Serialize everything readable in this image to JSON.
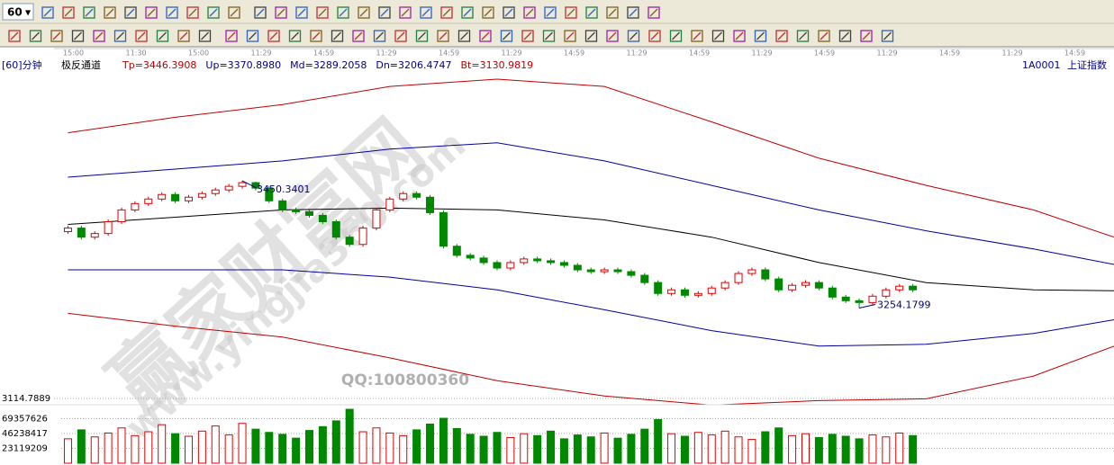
{
  "toolbar": {
    "period": "60"
  },
  "chart_data": {
    "type": "candlestick",
    "period_label": "[60]分钟",
    "indicator": "极反通道",
    "indicator_values": [
      "Tp=3446.3908",
      "Up=3370.8980",
      "Md=3289.2058",
      "Dn=3206.4747",
      "Bt=3130.9819"
    ],
    "code": "1A0001",
    "name": "上证指数",
    "time_labels": [
      "15:00",
      "11:30",
      "15:00",
      "11:29",
      "14:59",
      "11:29",
      "14:59",
      "11:29",
      "14:59",
      "11:29",
      "14:59",
      "11:29",
      "14:59",
      "11:29",
      "14:59",
      "11:29",
      "14:59"
    ],
    "open": [
      3372.0,
      3377.5,
      3363.5,
      3369.1,
      3387.3,
      3405.5,
      3415.3,
      3422.3,
      3429.3,
      3419.5,
      3425.1,
      3430.7,
      3436.3,
      3441.9,
      3447.5,
      3439.1,
      3419.5,
      3405.5,
      3402.7,
      3397.1,
      3387.3,
      3363.5,
      3352.3,
      3377.5,
      3405.5,
      3422.3,
      3430.7,
      3425.1,
      3401.3,
      3349.5,
      3335.5,
      3331.3,
      3324.3,
      3315.9,
      3324.3,
      3329.9,
      3327.1,
      3324.3,
      3320.1,
      3313.1,
      3310.3,
      3313.1,
      3310.3,
      3304.7,
      3293.5,
      3276.7,
      3282.3,
      3273.9,
      3276.7,
      3285.1,
      3293.5,
      3307.5,
      3313.1,
      3299.1,
      3282.3,
      3289.3,
      3293.5,
      3285.1,
      3271.1,
      3265.5,
      3262.7,
      3272.5,
      3282.3,
      3287.9
    ],
    "high": [
      3381.0,
      3381.0,
      3372.6,
      3390.8,
      3409.0,
      3418.8,
      3425.8,
      3432.8,
      3432.8,
      3428.6,
      3434.2,
      3439.8,
      3445.4,
      3450.3401,
      3449.0,
      3442.6,
      3423.0,
      3409.0,
      3406.2,
      3400.6,
      3390.8,
      3367.0,
      3381.0,
      3409.0,
      3425.8,
      3434.2,
      3434.2,
      3428.6,
      3404.8,
      3353.0,
      3339.0,
      3334.8,
      3327.8,
      3327.8,
      3333.4,
      3333.4,
      3330.6,
      3327.8,
      3323.6,
      3316.6,
      3316.6,
      3316.6,
      3313.8,
      3308.2,
      3297.0,
      3285.8,
      3285.8,
      3280.2,
      3288.6,
      3297.0,
      3311.0,
      3316.6,
      3316.6,
      3302.6,
      3292.8,
      3297.0,
      3297.0,
      3288.6,
      3274.6,
      3269.0,
      3276.0,
      3285.8,
      3291.4,
      3291.4
    ],
    "low": [
      3368.5,
      3360.0,
      3360.0,
      3365.6,
      3383.8,
      3402.0,
      3411.8,
      3418.8,
      3416.0,
      3416.0,
      3421.6,
      3427.2,
      3432.8,
      3438.4,
      3435.6,
      3416.0,
      3402.0,
      3399.2,
      3393.6,
      3383.8,
      3360.0,
      3348.8,
      3348.8,
      3374.0,
      3402.0,
      3418.8,
      3421.6,
      3397.8,
      3346.0,
      3332.0,
      3327.8,
      3320.8,
      3312.4,
      3312.4,
      3320.8,
      3323.6,
      3320.8,
      3316.6,
      3309.6,
      3306.8,
      3306.8,
      3306.8,
      3301.2,
      3290.0,
      3273.2,
      3273.2,
      3270.4,
      3270.4,
      3273.2,
      3281.6,
      3290.0,
      3304.0,
      3295.6,
      3278.8,
      3278.8,
      3285.8,
      3281.6,
      3267.6,
      3262.0,
      3254.1799,
      3259.2,
      3269.0,
      3278.8,
      3278.8
    ],
    "close": [
      3377.5,
      3363.5,
      3369.1,
      3387.3,
      3405.5,
      3415.3,
      3422.3,
      3429.3,
      3419.5,
      3425.1,
      3430.7,
      3436.3,
      3441.9,
      3447.5,
      3439.1,
      3419.5,
      3405.5,
      3402.7,
      3397.1,
      3387.3,
      3363.5,
      3352.3,
      3377.5,
      3405.5,
      3422.3,
      3430.7,
      3425.1,
      3401.3,
      3349.5,
      3335.5,
      3331.3,
      3324.3,
      3315.9,
      3324.3,
      3329.9,
      3327.1,
      3324.3,
      3320.1,
      3313.1,
      3310.3,
      3313.1,
      3310.3,
      3304.7,
      3293.5,
      3276.7,
      3282.3,
      3273.9,
      3276.7,
      3285.1,
      3293.5,
      3307.5,
      3313.1,
      3299.1,
      3282.3,
      3289.3,
      3293.5,
      3285.1,
      3271.1,
      3265.5,
      3262.7,
      3272.5,
      3282.3,
      3287.9,
      3282.3
    ],
    "up_color": "#e00000",
    "down_color": "#008800",
    "xlim": [
      -0.5,
      78
    ],
    "ylim": [
      3114.7889,
      3646
    ],
    "yticks": [
      3114.7889
    ],
    "band_x": [
      0,
      8,
      16,
      24,
      32,
      40,
      48,
      56,
      64,
      72,
      78
    ],
    "bands": [
      {
        "color": "#c00000",
        "values": [
          3524.5,
          3548.3,
          3567.9,
          3595.9,
          3607.1,
          3595.9,
          3541.3,
          3485.3,
          3443.3,
          3405.5,
          3363.5
        ]
      },
      {
        "color": "#0000a0",
        "values": [
          3456.0,
          3468.5,
          3481.1,
          3499.3,
          3509.1,
          3481.1,
          3443.3,
          3405.5,
          3373.3,
          3345.3,
          3321.5
        ]
      },
      {
        "color": "#000000",
        "values": [
          3383.1,
          3394.3,
          3405.5,
          3408.3,
          3405.5,
          3390.1,
          3363.5,
          3324.3,
          3293.5,
          3282.3,
          3280.9
        ]
      },
      {
        "color": "#0000a0",
        "values": [
          3313.1,
          3313.1,
          3313.1,
          3301.9,
          3282.3,
          3251.5,
          3219.3,
          3195.5,
          3198.3,
          3215.1,
          3236.1
        ]
      },
      {
        "color": "#c00000",
        "values": [
          3246.0,
          3226.3,
          3209.5,
          3177.3,
          3142.3,
          3118.5,
          3104.5,
          3111.5,
          3114.3,
          3149.3,
          3195.5
        ]
      }
    ],
    "annotations": [
      "3450.3401",
      "3254.1799"
    ],
    "volume": {
      "ylim": [
        0,
        88300000
      ],
      "yticks": [
        23119209,
        46238417,
        69357626
      ],
      "values": [
        38000000,
        52000000,
        41000000,
        47000000,
        55000000,
        43000000,
        49000000,
        60000000,
        46000000,
        42000000,
        50000000,
        58000000,
        44000000,
        62000000,
        53000000,
        48000000,
        45000000,
        39000000,
        51000000,
        57000000,
        66000000,
        84000000,
        49000000,
        55000000,
        47000000,
        43000000,
        52000000,
        61000000,
        70000000,
        54000000,
        45000000,
        42000000,
        48000000,
        40000000,
        46000000,
        43000000,
        50000000,
        38000000,
        44000000,
        41000000,
        47000000,
        39000000,
        45000000,
        53000000,
        68000000,
        46000000,
        42000000,
        48000000,
        44000000,
        50000000,
        41000000,
        37000000,
        49000000,
        55000000,
        43000000,
        46000000,
        40000000,
        45000000,
        42000000,
        38000000,
        44000000,
        41000000,
        47000000,
        43000000
      ]
    },
    "watermark": [
      "赢家财富网",
      "www.yingjia360.com",
      "QQ:100800360"
    ]
  }
}
